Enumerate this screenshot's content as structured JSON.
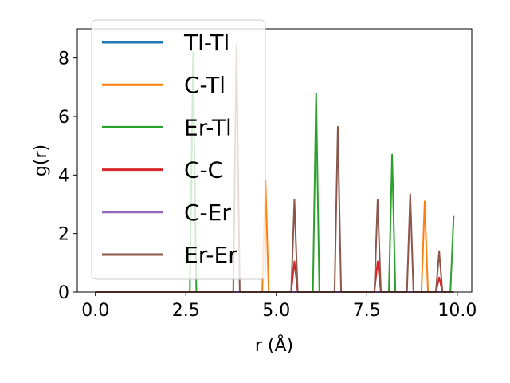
{
  "chart_data": {
    "type": "line",
    "title": "",
    "xlabel": "r (Å)",
    "ylabel": "g(r)",
    "xlim": [
      -0.5,
      10.4
    ],
    "ylim": [
      0,
      9.0
    ],
    "x_ticks": [
      0.0,
      2.5,
      5.0,
      7.5,
      10.0
    ],
    "x_tick_labels": [
      "0.0",
      "2.5",
      "5.0",
      "7.5",
      "10.0"
    ],
    "y_ticks": [
      0,
      2,
      4,
      6,
      8
    ],
    "y_tick_labels": [
      "0",
      "2",
      "4",
      "6",
      "8"
    ],
    "grid": false,
    "legend_position": "upper left",
    "x_range": [
      0.0,
      9.9
    ],
    "series": [
      {
        "name": "Tl-Tl",
        "color": "#1f77b4",
        "peaks": []
      },
      {
        "name": "C-Tl",
        "color": "#ff7f0e",
        "peaks": [
          [
            4.7,
            3.8
          ],
          [
            9.1,
            3.1
          ]
        ]
      },
      {
        "name": "Er-Tl",
        "color": "#2ca02c",
        "peaks": [
          [
            2.7,
            8.2
          ],
          [
            6.1,
            6.8
          ],
          [
            8.2,
            4.7
          ],
          [
            9.9,
            2.6
          ]
        ]
      },
      {
        "name": "C-C",
        "color": "#d62728",
        "peaks": [
          [
            5.5,
            1.05
          ],
          [
            7.8,
            1.05
          ],
          [
            9.5,
            0.5
          ]
        ]
      },
      {
        "name": "C-Er",
        "color": "#9467bd",
        "peaks": []
      },
      {
        "name": "Er-Er",
        "color": "#8c564b",
        "peaks": [
          [
            3.9,
            8.4
          ],
          [
            5.5,
            3.15
          ],
          [
            6.7,
            5.65
          ],
          [
            7.8,
            3.15
          ],
          [
            8.7,
            3.35
          ],
          [
            9.5,
            1.4
          ]
        ]
      }
    ]
  }
}
